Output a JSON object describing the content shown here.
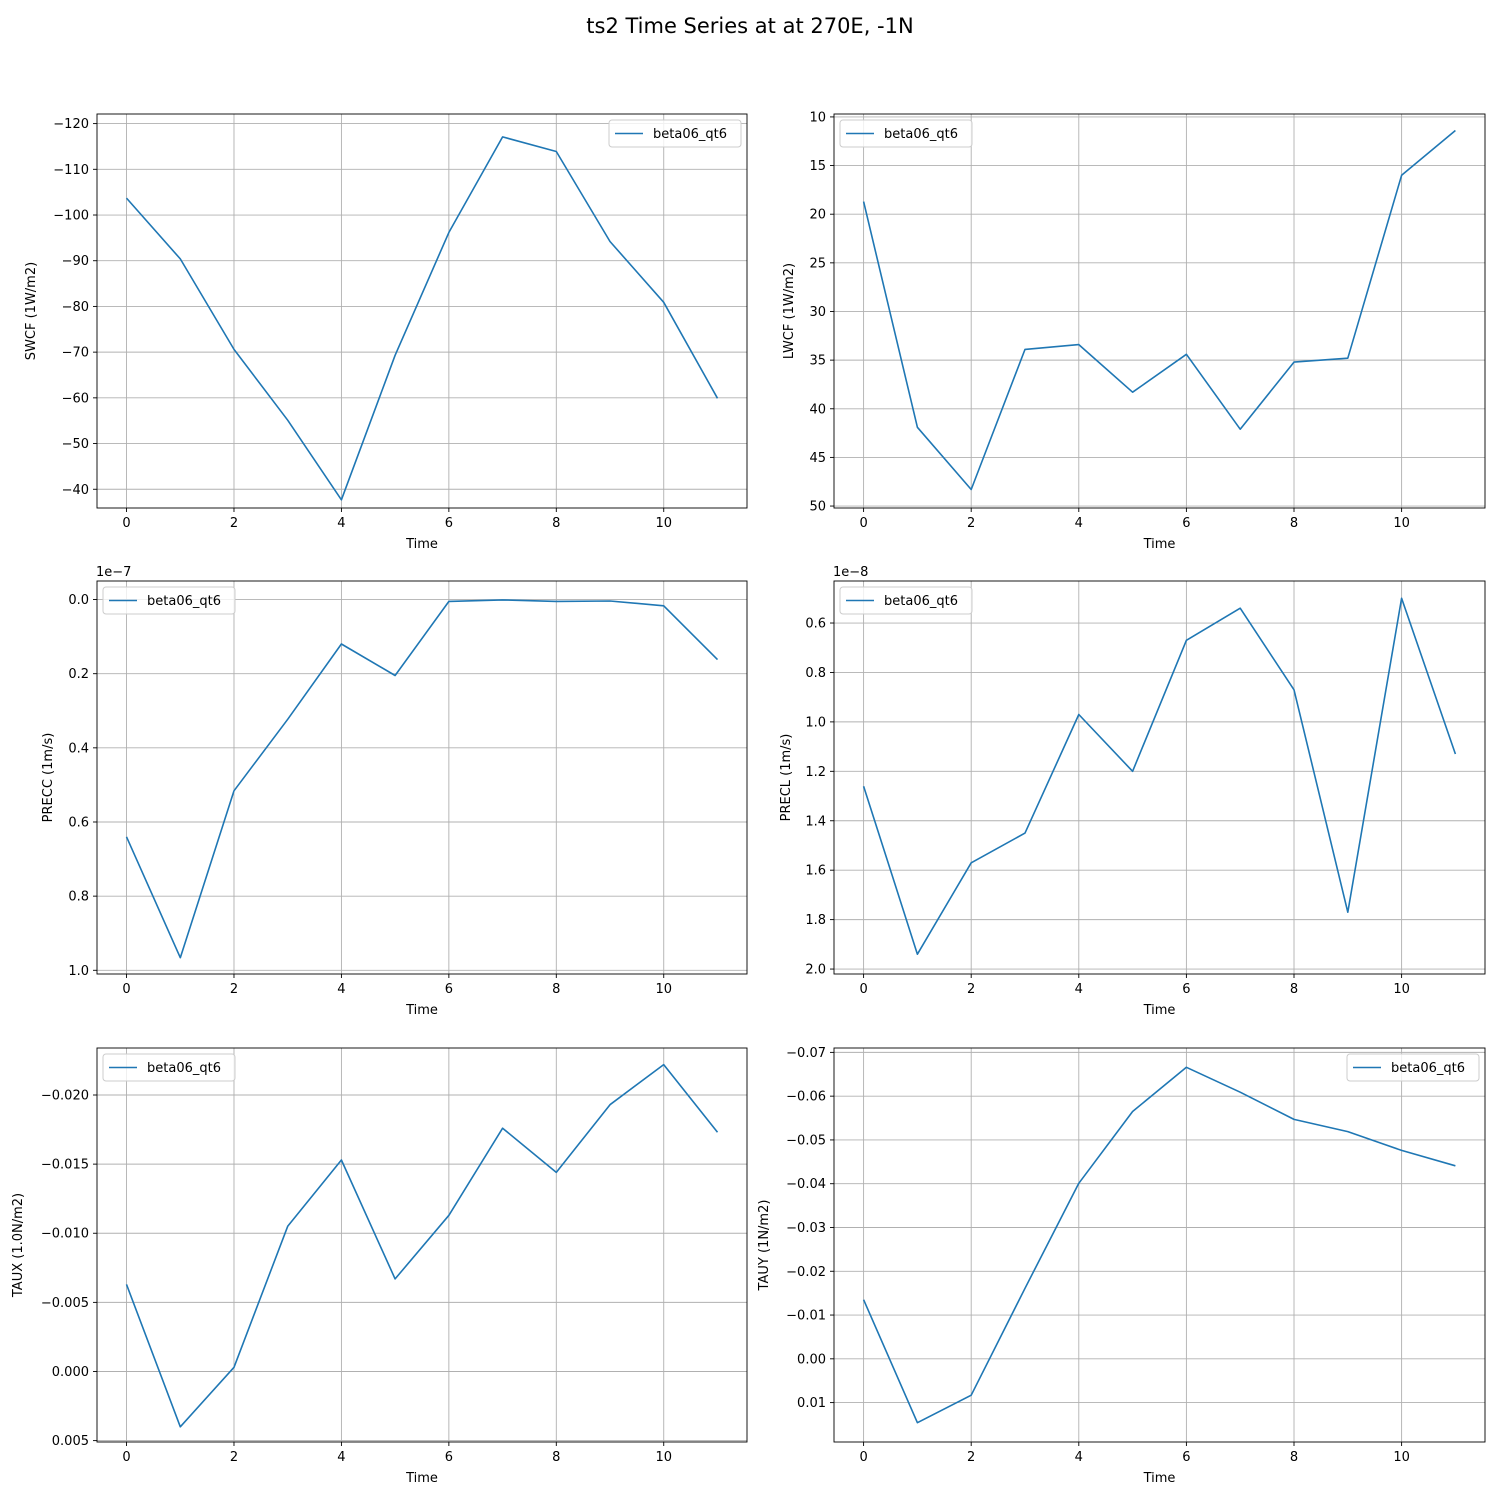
{
  "figure": {
    "title": "ts2 Time Series at at 270E, -1N",
    "line_color": "#1f77b4",
    "grid_color": "#b0b0b0"
  },
  "chart_data": [
    {
      "type": "line",
      "xlabel": "Time",
      "ylabel": "SWCF (1W/m2)",
      "x": [
        0,
        1,
        2,
        3,
        4,
        5,
        6,
        7,
        8,
        9,
        10,
        11
      ],
      "xlim": [
        -0.55,
        11.55
      ],
      "xticks": [
        0,
        2,
        4,
        6,
        8,
        10
      ],
      "xtick_labels": [
        "0",
        "2",
        "4",
        "6",
        "8",
        "10"
      ],
      "ylim": [
        -122.1,
        -35.9
      ],
      "y_inverted": true,
      "yticks": [
        -120,
        -110,
        -100,
        -90,
        -80,
        -70,
        -60,
        -50,
        -40
      ],
      "ytick_labels": [
        "−120",
        "−110",
        "−100",
        "−90",
        "−80",
        "−70",
        "−60",
        "−50",
        "−40"
      ],
      "offset_text": "",
      "series": [
        {
          "name": "beta06_qt6",
          "values": [
            -103.7,
            -90.4,
            -70.6,
            -55.1,
            -37.7,
            -69.3,
            -96.2,
            -117.1,
            -113.9,
            -94.2,
            -80.9,
            -59.9
          ]
        }
      ],
      "legend": "top-right",
      "grid": true
    },
    {
      "type": "line",
      "xlabel": "Time",
      "ylabel": "LWCF (1W/m2)",
      "x": [
        0,
        1,
        2,
        3,
        4,
        5,
        6,
        7,
        8,
        9,
        10,
        11
      ],
      "xlim": [
        -0.55,
        11.55
      ],
      "xticks": [
        0,
        2,
        4,
        6,
        8,
        10
      ],
      "xtick_labels": [
        "0",
        "2",
        "4",
        "6",
        "8",
        "10"
      ],
      "ylim": [
        9.7,
        50.2
      ],
      "y_inverted": true,
      "yticks": [
        10,
        15,
        20,
        25,
        30,
        35,
        40,
        45,
        50
      ],
      "ytick_labels": [
        "10",
        "15",
        "20",
        "25",
        "30",
        "35",
        "40",
        "45",
        "50"
      ],
      "offset_text": "",
      "series": [
        {
          "name": "beta06_qt6",
          "values": [
            18.7,
            41.9,
            48.3,
            33.9,
            33.4,
            38.3,
            34.4,
            42.1,
            35.2,
            34.8,
            16.0,
            11.4
          ]
        }
      ],
      "legend": "top-left",
      "grid": true
    },
    {
      "type": "line",
      "xlabel": "Time",
      "ylabel": "PRECC (1m/s)",
      "x": [
        0,
        1,
        2,
        3,
        4,
        5,
        6,
        7,
        8,
        9,
        10,
        11
      ],
      "xlim": [
        -0.55,
        11.55
      ],
      "xticks": [
        0,
        2,
        4,
        6,
        8,
        10
      ],
      "xtick_labels": [
        "0",
        "2",
        "4",
        "6",
        "8",
        "10"
      ],
      "ylim": [
        -0.05,
        1.01
      ],
      "y_inverted": true,
      "yticks": [
        0.0,
        0.2,
        0.4,
        0.6,
        0.8,
        1.0
      ],
      "ytick_labels": [
        "0.0",
        "0.2",
        "0.4",
        "0.6",
        "0.8",
        "1.0"
      ],
      "offset_text": "1e−7",
      "series": [
        {
          "name": "beta06_qt6",
          "values": [
            0.64,
            0.966,
            0.516,
            0.323,
            0.12,
            0.205,
            0.005,
            0.001,
            0.005,
            0.004,
            0.017,
            0.162
          ]
        }
      ],
      "legend": "top-left",
      "grid": true
    },
    {
      "type": "line",
      "xlabel": "Time",
      "ylabel": "PRECL (1m/s)",
      "x": [
        0,
        1,
        2,
        3,
        4,
        5,
        6,
        7,
        8,
        9,
        10,
        11
      ],
      "xlim": [
        -0.55,
        11.55
      ],
      "xticks": [
        0.0,
        2,
        4,
        6,
        8,
        10
      ],
      "xtick_labels": [
        "0",
        "2",
        "4",
        "6",
        "8",
        "10"
      ],
      "ylim": [
        0.43,
        2.02
      ],
      "y_inverted": true,
      "yticks": [
        0.6,
        0.8,
        1.0,
        1.2,
        1.4,
        1.6,
        1.8,
        2.0
      ],
      "ytick_labels": [
        "0.6",
        "0.8",
        "1.0",
        "1.2",
        "1.4",
        "1.6",
        "1.8",
        "2.0"
      ],
      "offset_text": "1e−8",
      "series": [
        {
          "name": "beta06_qt6",
          "values": [
            1.26,
            1.94,
            1.57,
            1.45,
            0.97,
            1.2,
            0.67,
            0.54,
            0.87,
            1.77,
            0.5,
            1.13
          ]
        }
      ],
      "legend": "top-left",
      "grid": true
    },
    {
      "type": "line",
      "xlabel": "Time",
      "ylabel": "TAUX (1.0N/m2)",
      "x": [
        0,
        1,
        2,
        3,
        4,
        5,
        6,
        7,
        8,
        9,
        10,
        11
      ],
      "xlim": [
        -0.55,
        11.55
      ],
      "xticks": [
        0,
        2,
        4,
        6,
        8,
        10
      ],
      "xtick_labels": [
        "0",
        "2",
        "4",
        "6",
        "8",
        "10"
      ],
      "ylim": [
        -0.0234,
        0.0051
      ],
      "y_inverted": true,
      "yticks": [
        -0.02,
        -0.015,
        -0.01,
        -0.005,
        0.0,
        0.005
      ],
      "ytick_labels": [
        "−0.020",
        "−0.015",
        "−0.010",
        "−0.005",
        "0.000",
        "0.005"
      ],
      "offset_text": "",
      "series": [
        {
          "name": "beta06_qt6",
          "values": [
            -0.0063,
            0.004,
            -0.0003,
            -0.0105,
            -0.0153,
            -0.0067,
            -0.0113,
            -0.0176,
            -0.0144,
            -0.0193,
            -0.0222,
            -0.0173
          ]
        }
      ],
      "legend": "top-left",
      "grid": true
    },
    {
      "type": "line",
      "xlabel": "Time",
      "ylabel": "TAUY (1N/m2)",
      "x": [
        0,
        1,
        2,
        3,
        4,
        5,
        6,
        7,
        8,
        9,
        10,
        11
      ],
      "xlim": [
        -0.55,
        11.55
      ],
      "xticks": [
        0,
        2,
        4,
        6,
        8,
        10
      ],
      "xtick_labels": [
        "0",
        "2",
        "4",
        "6",
        "8",
        "10"
      ],
      "ylim": [
        -0.071,
        0.019
      ],
      "y_inverted": true,
      "yticks": [
        -0.07,
        -0.06,
        -0.05,
        -0.04,
        -0.03,
        -0.02,
        -0.01,
        0.0,
        0.01
      ],
      "ytick_labels": [
        "−0.07",
        "−0.06",
        "−0.05",
        "−0.04",
        "−0.03",
        "−0.02",
        "−0.01",
        "0.00",
        "0.01"
      ],
      "offset_text": "",
      "series": [
        {
          "name": "beta06_qt6",
          "values": [
            -0.0135,
            0.0146,
            0.0083,
            -0.0161,
            -0.0401,
            -0.0565,
            -0.0666,
            -0.0609,
            -0.0547,
            -0.0519,
            -0.0476,
            -0.0441
          ]
        }
      ],
      "legend": "top-right",
      "grid": true
    }
  ]
}
